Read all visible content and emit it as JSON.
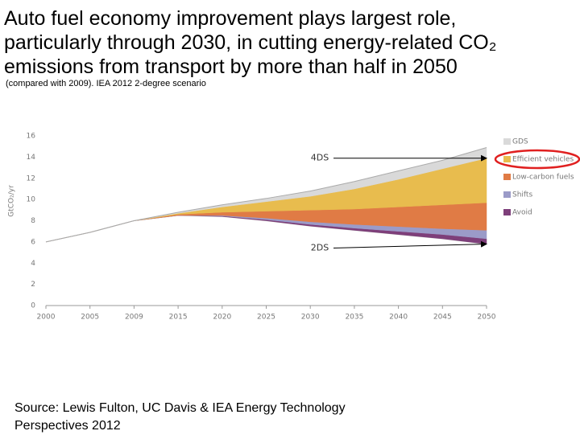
{
  "title": [
    "Auto fuel economy improvement plays largest role,",
    "particularly through 2030, in cutting energy-related CO₂",
    "emissions from transport by more than half in 2050"
  ],
  "subtitle": "(compared with 2009). IEA 2012 2-degree scenario",
  "source": [
    "Source: Lewis Fulton, UC Davis & IEA Energy Technology",
    "Perspectives 2012"
  ],
  "chart_data": {
    "type": "stacked-area",
    "y_label": "GtCO₂/yr",
    "annotation": "4DS",
    "categories": [
      "2000",
      "2005",
      "2009",
      "2015",
      "2020",
      "2025",
      "2030",
      "2035",
      "2040",
      "2045",
      "2050"
    ],
    "base": {
      "name": "2DS",
      "values": [
        6.0,
        6.9,
        8.0,
        8.5,
        8.4,
        8.0,
        7.5,
        7.1,
        6.7,
        6.3,
        5.8
      ]
    },
    "series": [
      {
        "name": "Avoid",
        "color": "#7e3f7a",
        "values": [
          0,
          0,
          0,
          0,
          0.05,
          0.1,
          0.15,
          0.2,
          0.3,
          0.4,
          0.5
        ]
      },
      {
        "name": "Shifts",
        "color": "#9b9bc8",
        "values": [
          0,
          0,
          0,
          0,
          0.05,
          0.15,
          0.25,
          0.35,
          0.45,
          0.55,
          0.8
        ]
      },
      {
        "name": "Low-carbon fuels",
        "color": "#e07b45",
        "values": [
          0,
          0,
          0,
          0.1,
          0.3,
          0.65,
          1.1,
          1.45,
          1.85,
          2.25,
          2.6
        ]
      },
      {
        "name": "Efficient vehicles",
        "color": "#e8bc4e",
        "values": [
          0,
          0,
          0,
          0.1,
          0.5,
          0.9,
          1.3,
          1.9,
          2.6,
          3.4,
          4.2
        ]
      },
      {
        "name": "GDS",
        "color": "#d9d9d9",
        "values": [
          0,
          0,
          0,
          0.1,
          0.2,
          0.3,
          0.5,
          0.7,
          0.8,
          0.8,
          1.0
        ]
      }
    ],
    "highlight": "Efficient vehicles",
    "ylim": [
      0,
      16
    ],
    "yticks": [
      0,
      2,
      4,
      6,
      8,
      10,
      12,
      14,
      16
    ]
  }
}
